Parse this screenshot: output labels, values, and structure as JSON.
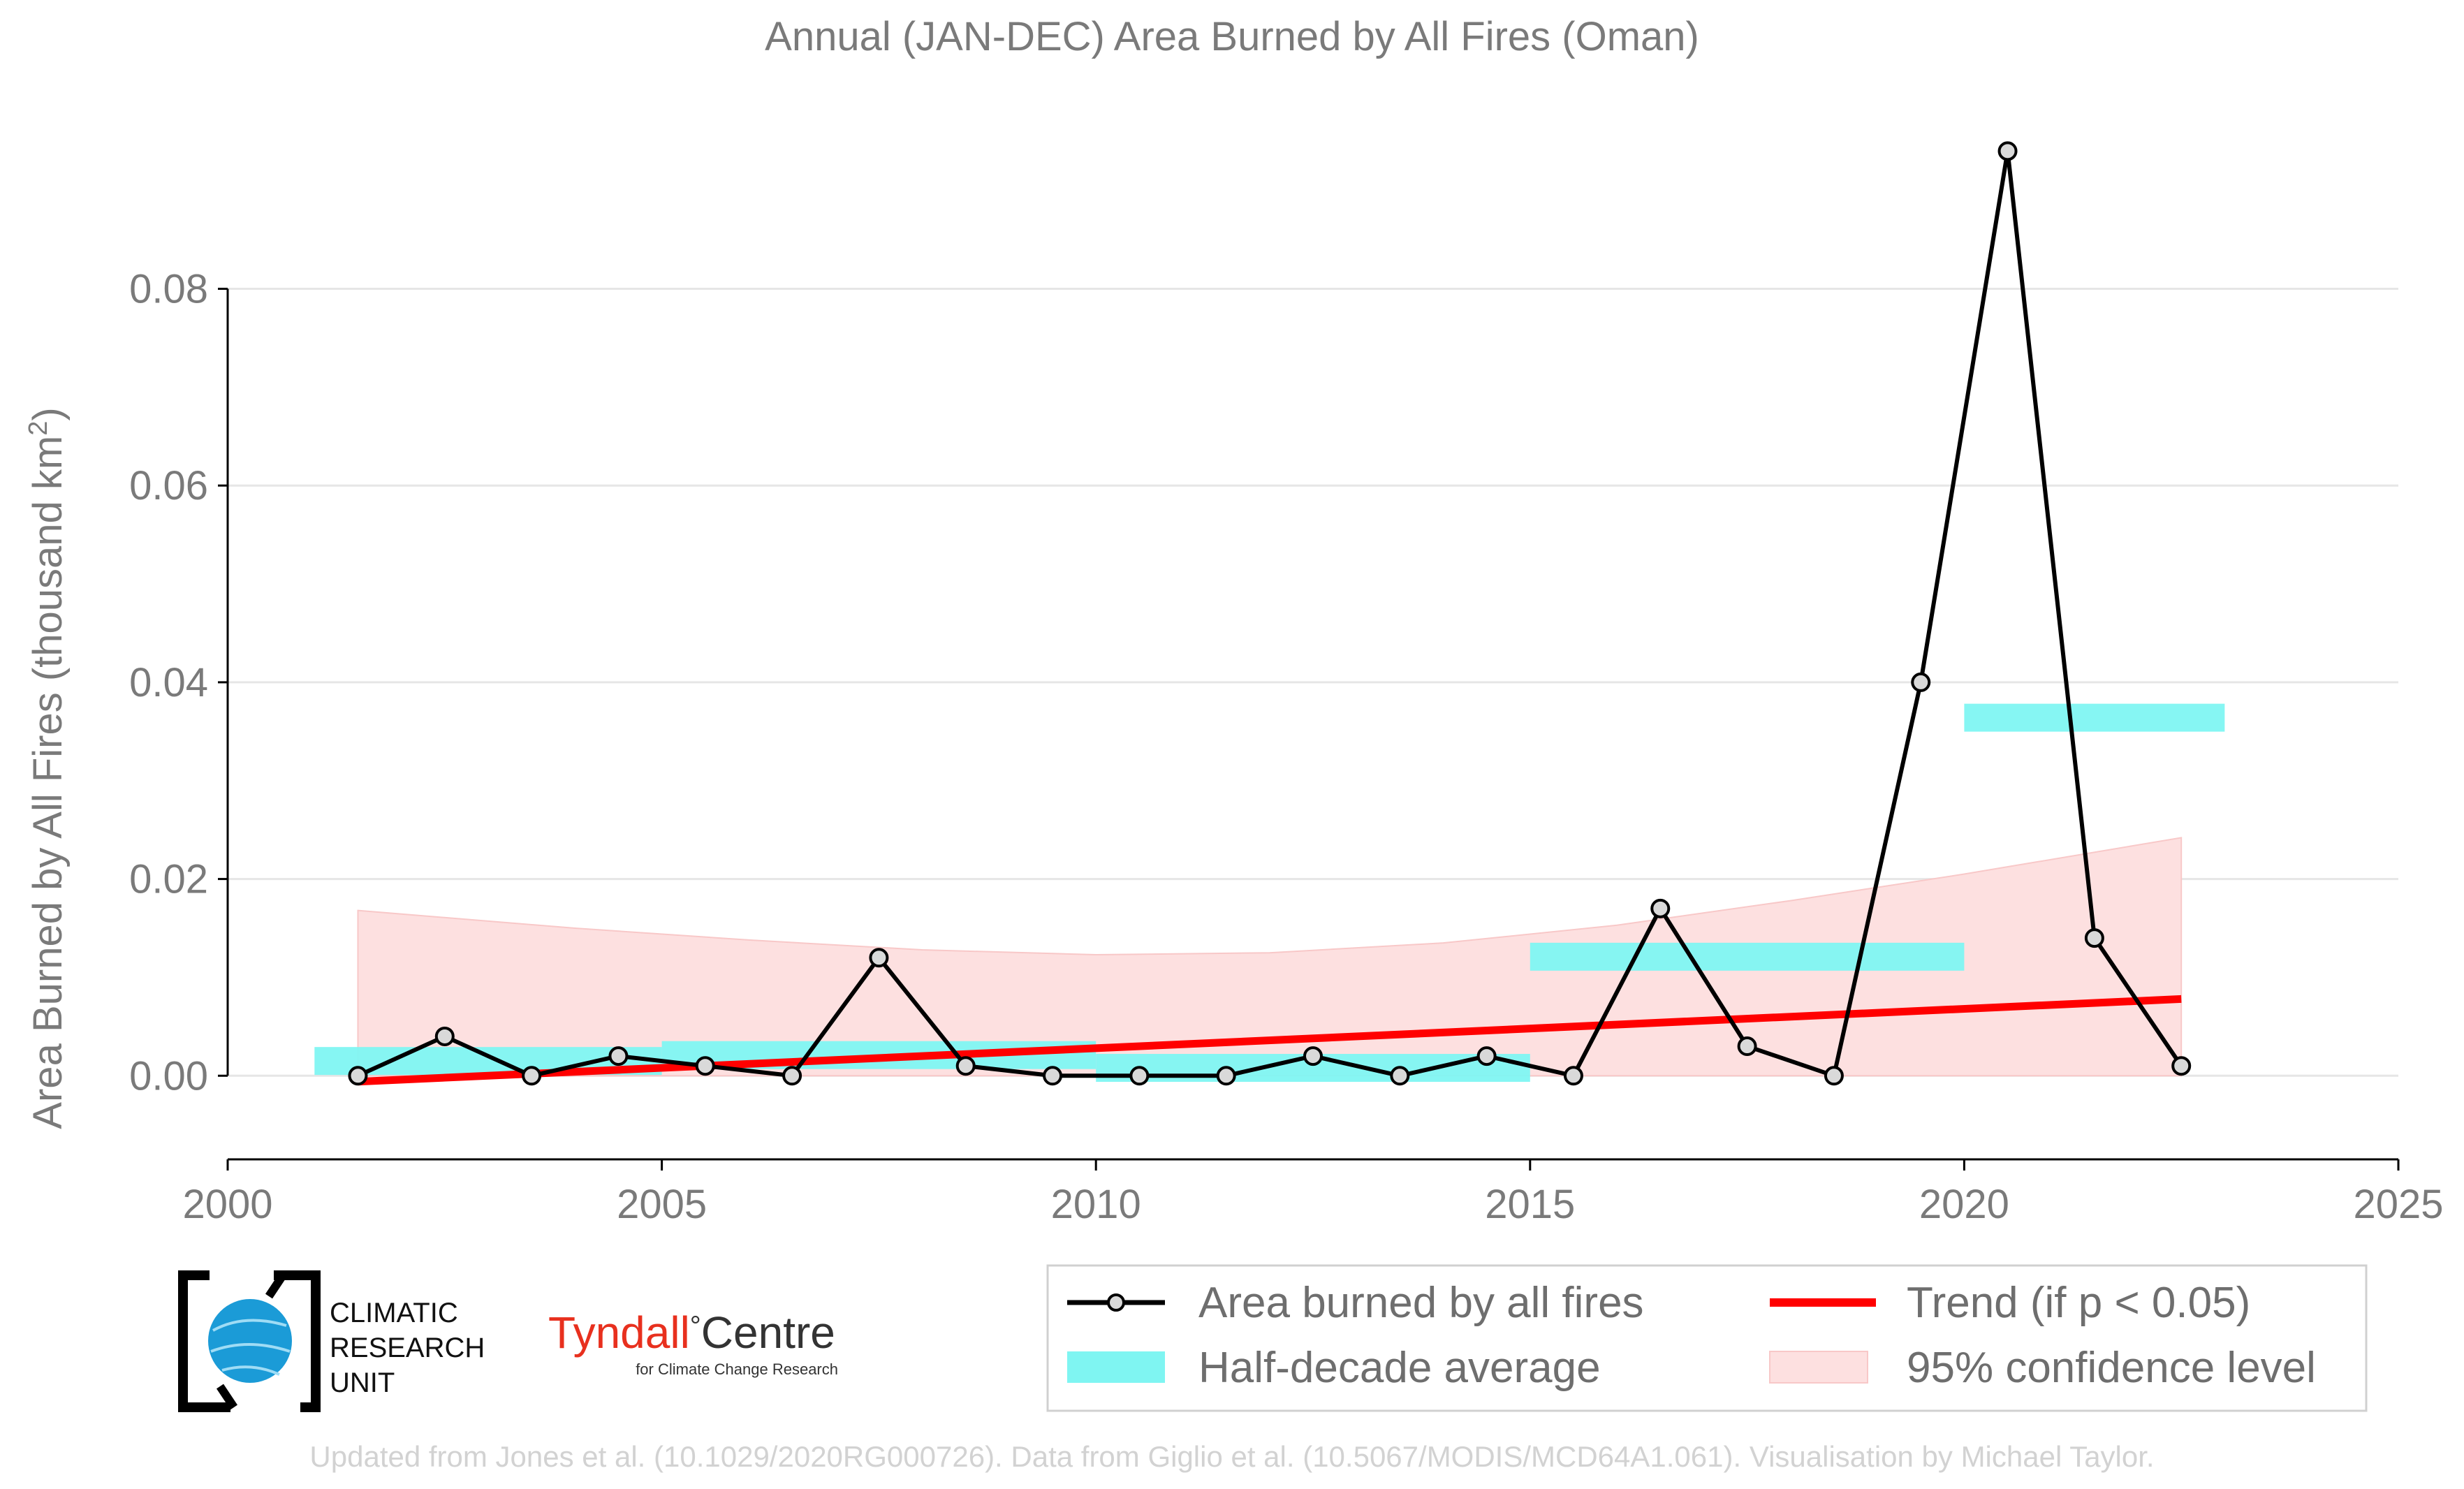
{
  "chart_data": {
    "type": "line",
    "title": "Annual (JAN-DEC) Area Burned by All Fires (Oman)",
    "ylabel_main": "Area Burned by All Fires (thousand km",
    "ylabel_sup": "2",
    "ylabel_end": ")",
    "xlabel": "",
    "xlim": [
      2000,
      2025
    ],
    "ylim": [
      -0.0085,
      0.098
    ],
    "x_ticks": [
      "2000",
      "2005",
      "2010",
      "2015",
      "2020",
      "2025"
    ],
    "y_ticks": [
      "0.00",
      "0.02",
      "0.04",
      "0.06",
      "0.08"
    ],
    "grid": "horizontal",
    "series": [
      {
        "name": "Area burned by all fires",
        "color": "#000000",
        "marker_fill": "#d9d9d9",
        "x": [
          2001.5,
          2002.5,
          2003.5,
          2004.5,
          2005.5,
          2006.5,
          2007.5,
          2008.5,
          2009.5,
          2010.5,
          2011.5,
          2012.5,
          2013.5,
          2014.5,
          2015.5,
          2016.5,
          2017.5,
          2018.5,
          2019.5,
          2020.5,
          2021.5,
          2022.5
        ],
        "y": [
          0.0,
          0.004,
          0.0,
          0.002,
          0.001,
          0.0,
          0.012,
          0.001,
          0.0,
          0.0,
          0.0,
          0.002,
          0.0,
          0.002,
          0.0,
          0.017,
          0.003,
          0.0,
          0.04,
          0.094,
          0.014,
          0.001
        ]
      }
    ],
    "half_decade_average": {
      "name": "Half-decade average",
      "color": "#7ff5f2",
      "segments": [
        {
          "x0": 2001,
          "x1": 2005,
          "y": 0.0015
        },
        {
          "x0": 2005,
          "x1": 2010,
          "y": 0.0021
        },
        {
          "x0": 2010,
          "x1": 2015,
          "y": 0.0008
        },
        {
          "x0": 2015,
          "x1": 2020,
          "y": 0.0121
        },
        {
          "x0": 2020,
          "x1": 2023,
          "y": 0.0364
        }
      ]
    },
    "trend": {
      "name": "Trend (if p < 0.05)",
      "color": "#ff0000",
      "x0": 2001.5,
      "y0": -0.0006,
      "x1": 2022.5,
      "y1": 0.0078
    },
    "confidence": {
      "name": "95% confidence level",
      "color": "#fde0e0",
      "x": [
        2001.5,
        2004,
        2006,
        2008,
        2010,
        2012,
        2014,
        2016,
        2018,
        2020,
        2022.5
      ],
      "upper": [
        0.0168,
        0.015,
        0.0138,
        0.0128,
        0.0123,
        0.0125,
        0.0135,
        0.0153,
        0.0178,
        0.0205,
        0.0242
      ],
      "lower": [
        0.0,
        0.0,
        0.0,
        0.0,
        0.0,
        0.0,
        0.0,
        0.0,
        0.0,
        0.0,
        0.0
      ]
    },
    "legend_position": "bottom-right"
  },
  "logos": {
    "cru_lines": [
      "CLIMATIC",
      "RESEARCH",
      "UNIT"
    ],
    "tyndall_name": "Tyndall",
    "tyndall_degree": "°",
    "tyndall_centre": "Centre",
    "tyndall_tagline": "for Climate Change Research"
  },
  "footer": {
    "credit": "Updated from Jones et al. (10.1029/2020RG000726). Data from Giglio et al. (10.5067/MODIS/MCD64A1.061). Visualisation by Michael Taylor."
  },
  "colors": {
    "text_grey": "#7a7a7a",
    "gridline": "#e6e6e6",
    "cru_blue": "#1b9bd7",
    "tyndall_red": "#e8301e"
  }
}
